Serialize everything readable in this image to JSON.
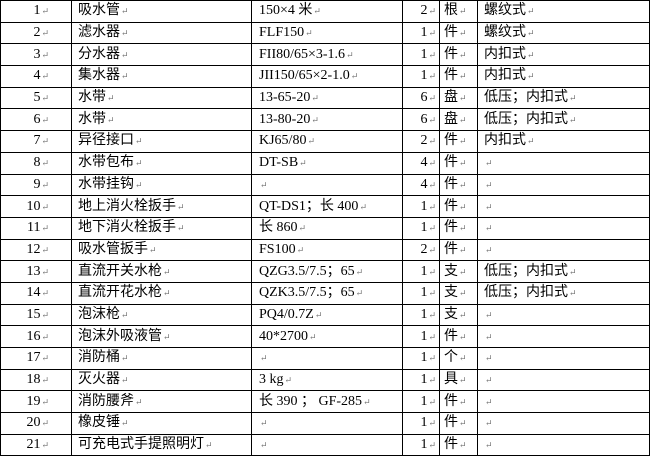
{
  "rows": [
    {
      "no": "1",
      "name": "吸水管",
      "spec": "150×4 米",
      "qty": "2",
      "unit": "根",
      "note": "螺纹式"
    },
    {
      "no": "2",
      "name": "滤水器",
      "spec": "FLF150",
      "qty": "1",
      "unit": "件",
      "note": "螺纹式"
    },
    {
      "no": "3",
      "name": "分水器",
      "spec": "FII80/65×3-1.6",
      "qty": "1",
      "unit": "件",
      "note": "内扣式"
    },
    {
      "no": "4",
      "name": "集水器",
      "spec": "JII150/65×2-1.0",
      "qty": "1",
      "unit": "件",
      "note": "内扣式"
    },
    {
      "no": "5",
      "name": "水带",
      "spec": "13-65-20",
      "qty": "6",
      "unit": "盘",
      "note": "低压；内扣式"
    },
    {
      "no": "6",
      "name": "水带",
      "spec": "13-80-20",
      "qty": "6",
      "unit": "盘",
      "note": "低压；内扣式"
    },
    {
      "no": "7",
      "name": "异径接口",
      "spec": "KJ65/80",
      "qty": "2",
      "unit": "件",
      "note": "内扣式"
    },
    {
      "no": "8",
      "name": "水带包布",
      "spec": "DT-SB",
      "qty": "4",
      "unit": "件",
      "note": ""
    },
    {
      "no": "9",
      "name": "水带挂钩",
      "spec": "",
      "qty": "4",
      "unit": "件",
      "note": ""
    },
    {
      "no": "10",
      "name": "地上消火栓扳手",
      "spec": "QT-DS1；长 400",
      "qty": "1",
      "unit": "件",
      "note": ""
    },
    {
      "no": "11",
      "name": "地下消火栓扳手",
      "spec": "长 860",
      "qty": "1",
      "unit": "件",
      "note": ""
    },
    {
      "no": "12",
      "name": "吸水管扳手",
      "spec": "FS100",
      "qty": "2",
      "unit": "件",
      "note": ""
    },
    {
      "no": "13",
      "name": "直流开关水枪",
      "spec": "QZG3.5/7.5；65",
      "qty": "1",
      "unit": "支",
      "note": "低压；内扣式"
    },
    {
      "no": "14",
      "name": "直流开花水枪",
      "spec": "QZK3.5/7.5；65",
      "qty": "1",
      "unit": "支",
      "note": "低压；内扣式"
    },
    {
      "no": "15",
      "name": "泡沫枪",
      "spec": "PQ4/0.7Z",
      "qty": "1",
      "unit": "支",
      "note": ""
    },
    {
      "no": "16",
      "name": "泡沫外吸液管",
      "spec": "40*2700",
      "qty": "1",
      "unit": "件",
      "note": ""
    },
    {
      "no": "17",
      "name": "消防桶",
      "spec": "",
      "qty": "1",
      "unit": "个",
      "note": ""
    },
    {
      "no": "18",
      "name": "灭火器",
      "spec": "3 kg",
      "qty": "1",
      "unit": "具",
      "note": ""
    },
    {
      "no": "19",
      "name": "消防腰斧",
      "spec": "长 390 ； GF-285",
      "qty": "1",
      "unit": "件",
      "note": ""
    },
    {
      "no": "20",
      "name": "橡皮锤",
      "spec": "",
      "qty": "1",
      "unit": "件",
      "note": ""
    },
    {
      "no": "21",
      "name": "可充电式手提照明灯",
      "spec": "",
      "qty": "1",
      "unit": "件",
      "note": ""
    }
  ]
}
